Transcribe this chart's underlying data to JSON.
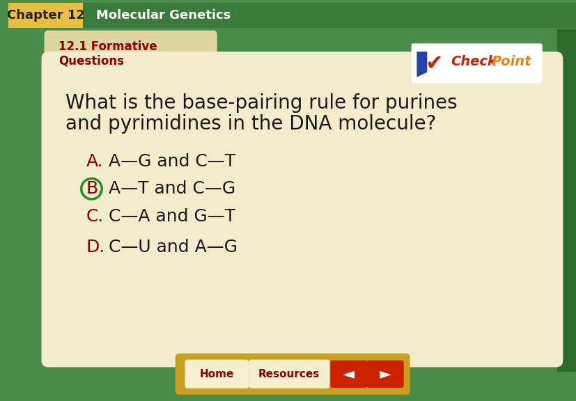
{
  "header_bg": "#3a7a3a",
  "header_text_chapter": "Chapter 12",
  "header_text_title": "Molecular Genetics",
  "header_chapter_bg": "#e8c040",
  "header_chapter_text_color": "#222222",
  "header_title_text_color": "#ffffff",
  "main_bg": "#4a8c4a",
  "card_bg": "#f2eccc",
  "card_tab_bg": "#ddd5a0",
  "section_label_line1": "12.1 Formative",
  "section_label_line2": "Questions",
  "section_label_color": "#8b0000",
  "question_line1": "What is the base-pairing rule for purines",
  "question_line2": "and pyrimidines in the DNA molecule?",
  "question_color": "#1a1a1a",
  "options": [
    {
      "letter": "A.",
      "text": "A—G and C—T",
      "letter_color": "#8b0000",
      "text_color": "#1a1a1a",
      "circled": false
    },
    {
      "letter": "B.",
      "text": "A—T and C—G",
      "letter_color": "#8b0000",
      "text_color": "#1a1a1a",
      "circled": true
    },
    {
      "letter": "C.",
      "text": "C—A and G—T",
      "letter_color": "#8b0000",
      "text_color": "#1a1a1a",
      "circled": false
    },
    {
      "letter": "D.",
      "text": "C—U and A—G",
      "letter_color": "#8b0000",
      "text_color": "#1a1a1a",
      "circled": false
    }
  ],
  "circle_color": "#2d8b2d",
  "checkpoint_check_color": "#cc2200",
  "checkpoint_text_color": "#cc2200",
  "checkpoint_point_color": "#e8860a",
  "bottom_bar_bg": "#c8a020",
  "btn_bg": "#f5f0d0",
  "btn_text_color": "#8b0000",
  "arrow_btn_bg": "#cc2200",
  "arrow_btn_text": "#ffffff",
  "figsize": [
    8.28,
    5.76
  ],
  "dpi": 100
}
